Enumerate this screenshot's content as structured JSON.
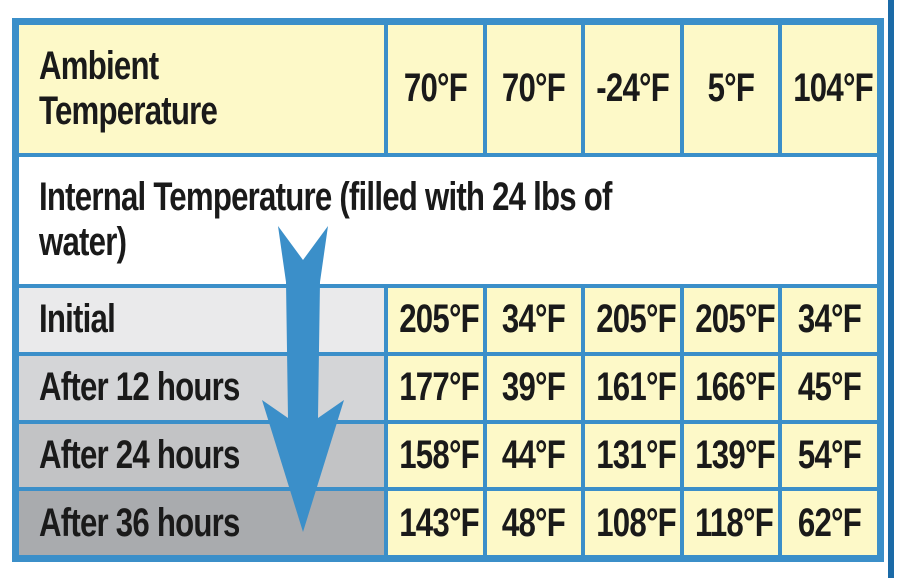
{
  "table": {
    "header_label": "Ambient Temperature",
    "ambient": [
      "70°F",
      "70°F",
      "-24°F",
      "5°F",
      "104°F"
    ],
    "section_label": "Internal Temperature (filled with 24 lbs of water)",
    "rows": [
      {
        "label": "Initial",
        "values": [
          "205°F",
          "34°F",
          "205°F",
          "205°F",
          "34°F"
        ]
      },
      {
        "label": "After 12 hours",
        "values": [
          "177°F",
          "39°F",
          "161°F",
          "166°F",
          "45°F"
        ]
      },
      {
        "label": "After 24 hours",
        "values": [
          "158°F",
          "44°F",
          "131°F",
          "139°F",
          "54°F"
        ]
      },
      {
        "label": "After 36 hours",
        "values": [
          "143°F",
          "48°F",
          "108°F",
          "118°F",
          "62°F"
        ]
      }
    ]
  },
  "colors": {
    "border": "#3b8fc9",
    "cell": "#fdf9c8",
    "arrow": "#3b8fc9"
  },
  "icons": {
    "arrow": "down-arrow-icon"
  }
}
